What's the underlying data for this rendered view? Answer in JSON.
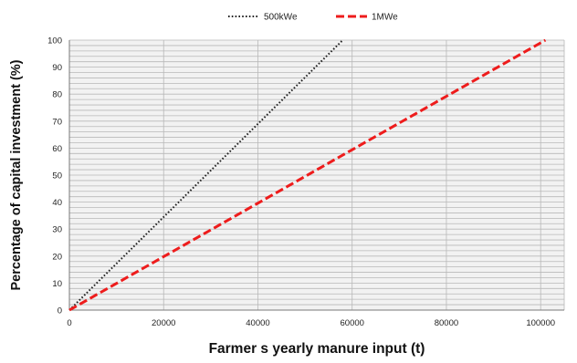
{
  "chart_data": {
    "type": "line",
    "xlabel": "Farmer s yearly manure input (t)",
    "ylabel": "Percentage of capital investment (%)",
    "xlim": [
      0,
      105000
    ],
    "ylim": [
      0,
      100
    ],
    "xticks": [
      0,
      20000,
      40000,
      60000,
      80000,
      100000
    ],
    "yticks": [
      0,
      10,
      20,
      30,
      40,
      50,
      60,
      70,
      80,
      90,
      100
    ],
    "grid": true,
    "grid_minor_y_step": 2,
    "legend_position": "top-center",
    "plot_background": "#f2f2f2",
    "grid_color": "#b8b8b8",
    "series": [
      {
        "name": "500kWe",
        "color": "#222222",
        "style": "dotted",
        "x": [
          0,
          58000
        ],
        "y": [
          0,
          100
        ]
      },
      {
        "name": "1MWe",
        "color": "#ee1c1c",
        "style": "dashed",
        "x": [
          0,
          101000
        ],
        "y": [
          0,
          100
        ]
      }
    ]
  }
}
